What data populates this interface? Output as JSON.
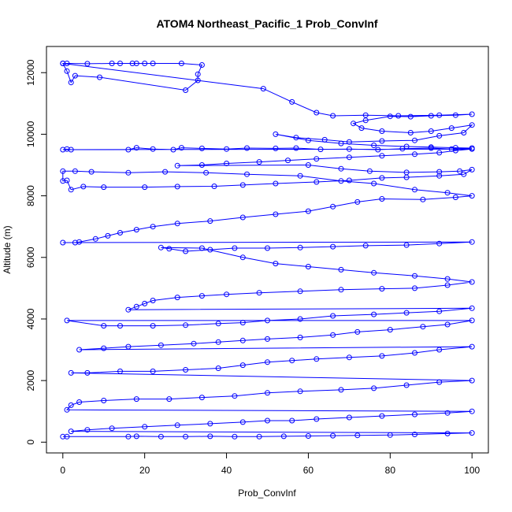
{
  "chart_data": {
    "type": "line",
    "title": "ATOM4 Northeast_Pacific_1 Prob_ConvInf",
    "xlabel": "Prob_ConvInf",
    "ylabel": "Altitude (m)",
    "xlim": [
      -4,
      104
    ],
    "ylim": [
      -350,
      12850
    ],
    "x_ticks": [
      0,
      20,
      40,
      60,
      80,
      100
    ],
    "y_ticks": [
      0,
      2000,
      4000,
      6000,
      8000,
      10000,
      12000
    ],
    "grid": false,
    "color": "#0000ff",
    "series": [
      {
        "points": [
          [
            0,
            12300
          ],
          [
            1,
            12300
          ],
          [
            6,
            12290
          ],
          [
            12,
            12300
          ],
          [
            14,
            12300
          ],
          [
            17,
            12300
          ],
          [
            18,
            12300
          ],
          [
            20,
            12300
          ],
          [
            22,
            12300
          ],
          [
            29,
            12300
          ],
          [
            34,
            12250
          ],
          [
            33,
            11950
          ],
          [
            33,
            11750
          ],
          [
            30,
            11430
          ],
          [
            9,
            11850
          ],
          [
            3,
            11900
          ],
          [
            2,
            11680
          ],
          [
            1,
            12050
          ],
          [
            0,
            12300
          ],
          [
            49,
            11480
          ],
          [
            56,
            11050
          ],
          [
            62,
            10700
          ],
          [
            66,
            10600
          ],
          [
            74,
            10620
          ],
          [
            82,
            10600
          ],
          [
            92,
            10620
          ],
          [
            100,
            10650
          ],
          [
            96,
            10620
          ],
          [
            90,
            10600
          ],
          [
            85,
            10570
          ],
          [
            80,
            10580
          ],
          [
            74,
            10450
          ],
          [
            71,
            10350
          ],
          [
            73,
            10200
          ],
          [
            78,
            10100
          ],
          [
            85,
            10050
          ],
          [
            90,
            10100
          ],
          [
            95,
            10200
          ],
          [
            100,
            10300
          ],
          [
            98,
            10050
          ],
          [
            92,
            9950
          ],
          [
            86,
            9800
          ],
          [
            78,
            9780
          ],
          [
            70,
            9750
          ],
          [
            64,
            9820
          ],
          [
            57,
            9890
          ],
          [
            52,
            10000
          ],
          [
            60,
            9800
          ],
          [
            68,
            9700
          ],
          [
            76,
            9640
          ],
          [
            84,
            9600
          ],
          [
            90,
            9580
          ],
          [
            96,
            9560
          ],
          [
            100,
            9550
          ],
          [
            95,
            9520
          ],
          [
            90,
            9550
          ],
          [
            83,
            9530
          ],
          [
            77,
            9500
          ],
          [
            70,
            9520
          ],
          [
            63,
            9510
          ],
          [
            57,
            9550
          ],
          [
            52,
            9540
          ],
          [
            45,
            9550
          ],
          [
            40,
            9520
          ],
          [
            34,
            9540
          ],
          [
            29,
            9560
          ],
          [
            27,
            9500
          ],
          [
            22,
            9520
          ],
          [
            18,
            9560
          ],
          [
            16,
            9500
          ],
          [
            2,
            9500
          ],
          [
            1,
            9520
          ],
          [
            0,
            9500
          ],
          [
            100,
            9520
          ],
          [
            96,
            9470
          ],
          [
            92,
            9400
          ],
          [
            86,
            9350
          ],
          [
            78,
            9300
          ],
          [
            70,
            9250
          ],
          [
            62,
            9200
          ],
          [
            55,
            9150
          ],
          [
            48,
            9100
          ],
          [
            40,
            9050
          ],
          [
            34,
            9000
          ],
          [
            28,
            8980
          ],
          [
            60,
            9000
          ],
          [
            68,
            8880
          ],
          [
            75,
            8800
          ],
          [
            84,
            8760
          ],
          [
            92,
            8780
          ],
          [
            97,
            8800
          ],
          [
            100,
            8850
          ],
          [
            98,
            8700
          ],
          [
            92,
            8650
          ],
          [
            84,
            8600
          ],
          [
            78,
            8580
          ],
          [
            70,
            8500
          ],
          [
            62,
            8450
          ],
          [
            52,
            8400
          ],
          [
            44,
            8350
          ],
          [
            37,
            8310
          ],
          [
            28,
            8300
          ],
          [
            20,
            8280
          ],
          [
            10,
            8280
          ],
          [
            5,
            8300
          ],
          [
            2,
            8200
          ],
          [
            1,
            8500
          ],
          [
            0,
            8480
          ],
          [
            0,
            8800
          ],
          [
            3,
            8800
          ],
          [
            7,
            8780
          ],
          [
            16,
            8750
          ],
          [
            25,
            8780
          ],
          [
            35,
            8750
          ],
          [
            45,
            8700
          ],
          [
            58,
            8650
          ],
          [
            68,
            8480
          ],
          [
            76,
            8400
          ],
          [
            86,
            8200
          ],
          [
            94,
            8100
          ],
          [
            100,
            8000
          ],
          [
            96,
            7950
          ],
          [
            88,
            7880
          ],
          [
            78,
            7900
          ],
          [
            72,
            7800
          ],
          [
            66,
            7650
          ],
          [
            60,
            7500
          ],
          [
            52,
            7400
          ],
          [
            44,
            7300
          ],
          [
            36,
            7180
          ],
          [
            28,
            7100
          ],
          [
            22,
            7000
          ],
          [
            18,
            6900
          ],
          [
            14,
            6800
          ],
          [
            11,
            6700
          ],
          [
            8,
            6600
          ],
          [
            4,
            6500
          ],
          [
            3,
            6480
          ],
          [
            0,
            6480
          ],
          [
            100,
            6500
          ],
          [
            92,
            6450
          ],
          [
            84,
            6400
          ],
          [
            74,
            6380
          ],
          [
            66,
            6350
          ],
          [
            58,
            6320
          ],
          [
            50,
            6300
          ],
          [
            42,
            6300
          ],
          [
            36,
            6250
          ],
          [
            30,
            6200
          ],
          [
            26,
            6280
          ],
          [
            24,
            6320
          ],
          [
            34,
            6300
          ],
          [
            44,
            6000
          ],
          [
            52,
            5800
          ],
          [
            60,
            5700
          ],
          [
            68,
            5600
          ],
          [
            76,
            5500
          ],
          [
            86,
            5400
          ],
          [
            94,
            5300
          ],
          [
            100,
            5200
          ],
          [
            94,
            5100
          ],
          [
            86,
            5000
          ],
          [
            78,
            4980
          ],
          [
            68,
            4950
          ],
          [
            58,
            4900
          ],
          [
            48,
            4850
          ],
          [
            40,
            4800
          ],
          [
            34,
            4750
          ],
          [
            28,
            4700
          ],
          [
            22,
            4600
          ],
          [
            20,
            4500
          ],
          [
            18,
            4400
          ],
          [
            16,
            4300
          ],
          [
            100,
            4350
          ],
          [
            92,
            4250
          ],
          [
            84,
            4200
          ],
          [
            76,
            4150
          ],
          [
            66,
            4100
          ],
          [
            58,
            4000
          ],
          [
            50,
            3950
          ],
          [
            44,
            3880
          ],
          [
            38,
            3850
          ],
          [
            30,
            3800
          ],
          [
            22,
            3780
          ],
          [
            14,
            3780
          ],
          [
            10,
            3780
          ],
          [
            1,
            3950
          ],
          [
            100,
            3950
          ],
          [
            94,
            3820
          ],
          [
            88,
            3750
          ],
          [
            80,
            3650
          ],
          [
            72,
            3580
          ],
          [
            66,
            3480
          ],
          [
            58,
            3400
          ],
          [
            50,
            3350
          ],
          [
            44,
            3300
          ],
          [
            38,
            3250
          ],
          [
            32,
            3200
          ],
          [
            24,
            3150
          ],
          [
            16,
            3100
          ],
          [
            10,
            3050
          ],
          [
            4,
            3000
          ],
          [
            100,
            3100
          ],
          [
            92,
            3000
          ],
          [
            86,
            2900
          ],
          [
            78,
            2800
          ],
          [
            70,
            2750
          ],
          [
            62,
            2700
          ],
          [
            56,
            2650
          ],
          [
            50,
            2600
          ],
          [
            44,
            2500
          ],
          [
            38,
            2400
          ],
          [
            30,
            2350
          ],
          [
            22,
            2300
          ],
          [
            14,
            2300
          ],
          [
            6,
            2250
          ],
          [
            2,
            2250
          ],
          [
            100,
            2000
          ],
          [
            92,
            1950
          ],
          [
            84,
            1850
          ],
          [
            76,
            1750
          ],
          [
            68,
            1700
          ],
          [
            58,
            1650
          ],
          [
            50,
            1600
          ],
          [
            42,
            1500
          ],
          [
            34,
            1450
          ],
          [
            26,
            1400
          ],
          [
            18,
            1400
          ],
          [
            10,
            1350
          ],
          [
            4,
            1300
          ],
          [
            2,
            1200
          ],
          [
            1,
            1050
          ],
          [
            100,
            1000
          ],
          [
            94,
            950
          ],
          [
            86,
            900
          ],
          [
            78,
            850
          ],
          [
            70,
            800
          ],
          [
            62,
            750
          ],
          [
            56,
            700
          ],
          [
            50,
            700
          ],
          [
            44,
            650
          ],
          [
            36,
            600
          ],
          [
            28,
            550
          ],
          [
            20,
            500
          ],
          [
            12,
            450
          ],
          [
            6,
            400
          ],
          [
            2,
            350
          ],
          [
            100,
            300
          ],
          [
            94,
            280
          ],
          [
            86,
            250
          ],
          [
            80,
            230
          ],
          [
            72,
            220
          ],
          [
            66,
            210
          ],
          [
            60,
            200
          ],
          [
            54,
            190
          ],
          [
            48,
            180
          ],
          [
            42,
            180
          ],
          [
            36,
            190
          ],
          [
            30,
            180
          ],
          [
            24,
            180
          ],
          [
            18,
            190
          ],
          [
            16,
            180
          ],
          [
            1,
            180
          ],
          [
            0,
            180
          ]
        ]
      }
    ]
  }
}
